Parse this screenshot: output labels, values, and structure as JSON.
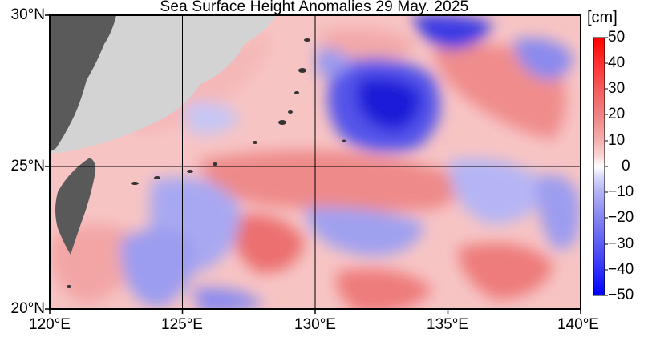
{
  "title": "Sea Surface Height Anomalies  29 May. 2025",
  "map": {
    "lon_range": [
      120,
      140
    ],
    "lat_range": [
      20,
      30
    ],
    "lat_labels": [
      "30°N",
      "25°N",
      "20°N"
    ],
    "lon_labels": [
      "120°E",
      "125°E",
      "130°E",
      "135°E",
      "140°E"
    ],
    "land_color": "#d3d3d3",
    "island_color": "#555555"
  },
  "colorbar": {
    "unit": "[cm]",
    "ticks": [
      "50",
      "40",
      "30",
      "20",
      "10",
      "0",
      "−10",
      "−20",
      "−30",
      "−40",
      "−50"
    ],
    "max_color": "#ff0000",
    "min_color": "#0000ff"
  }
}
